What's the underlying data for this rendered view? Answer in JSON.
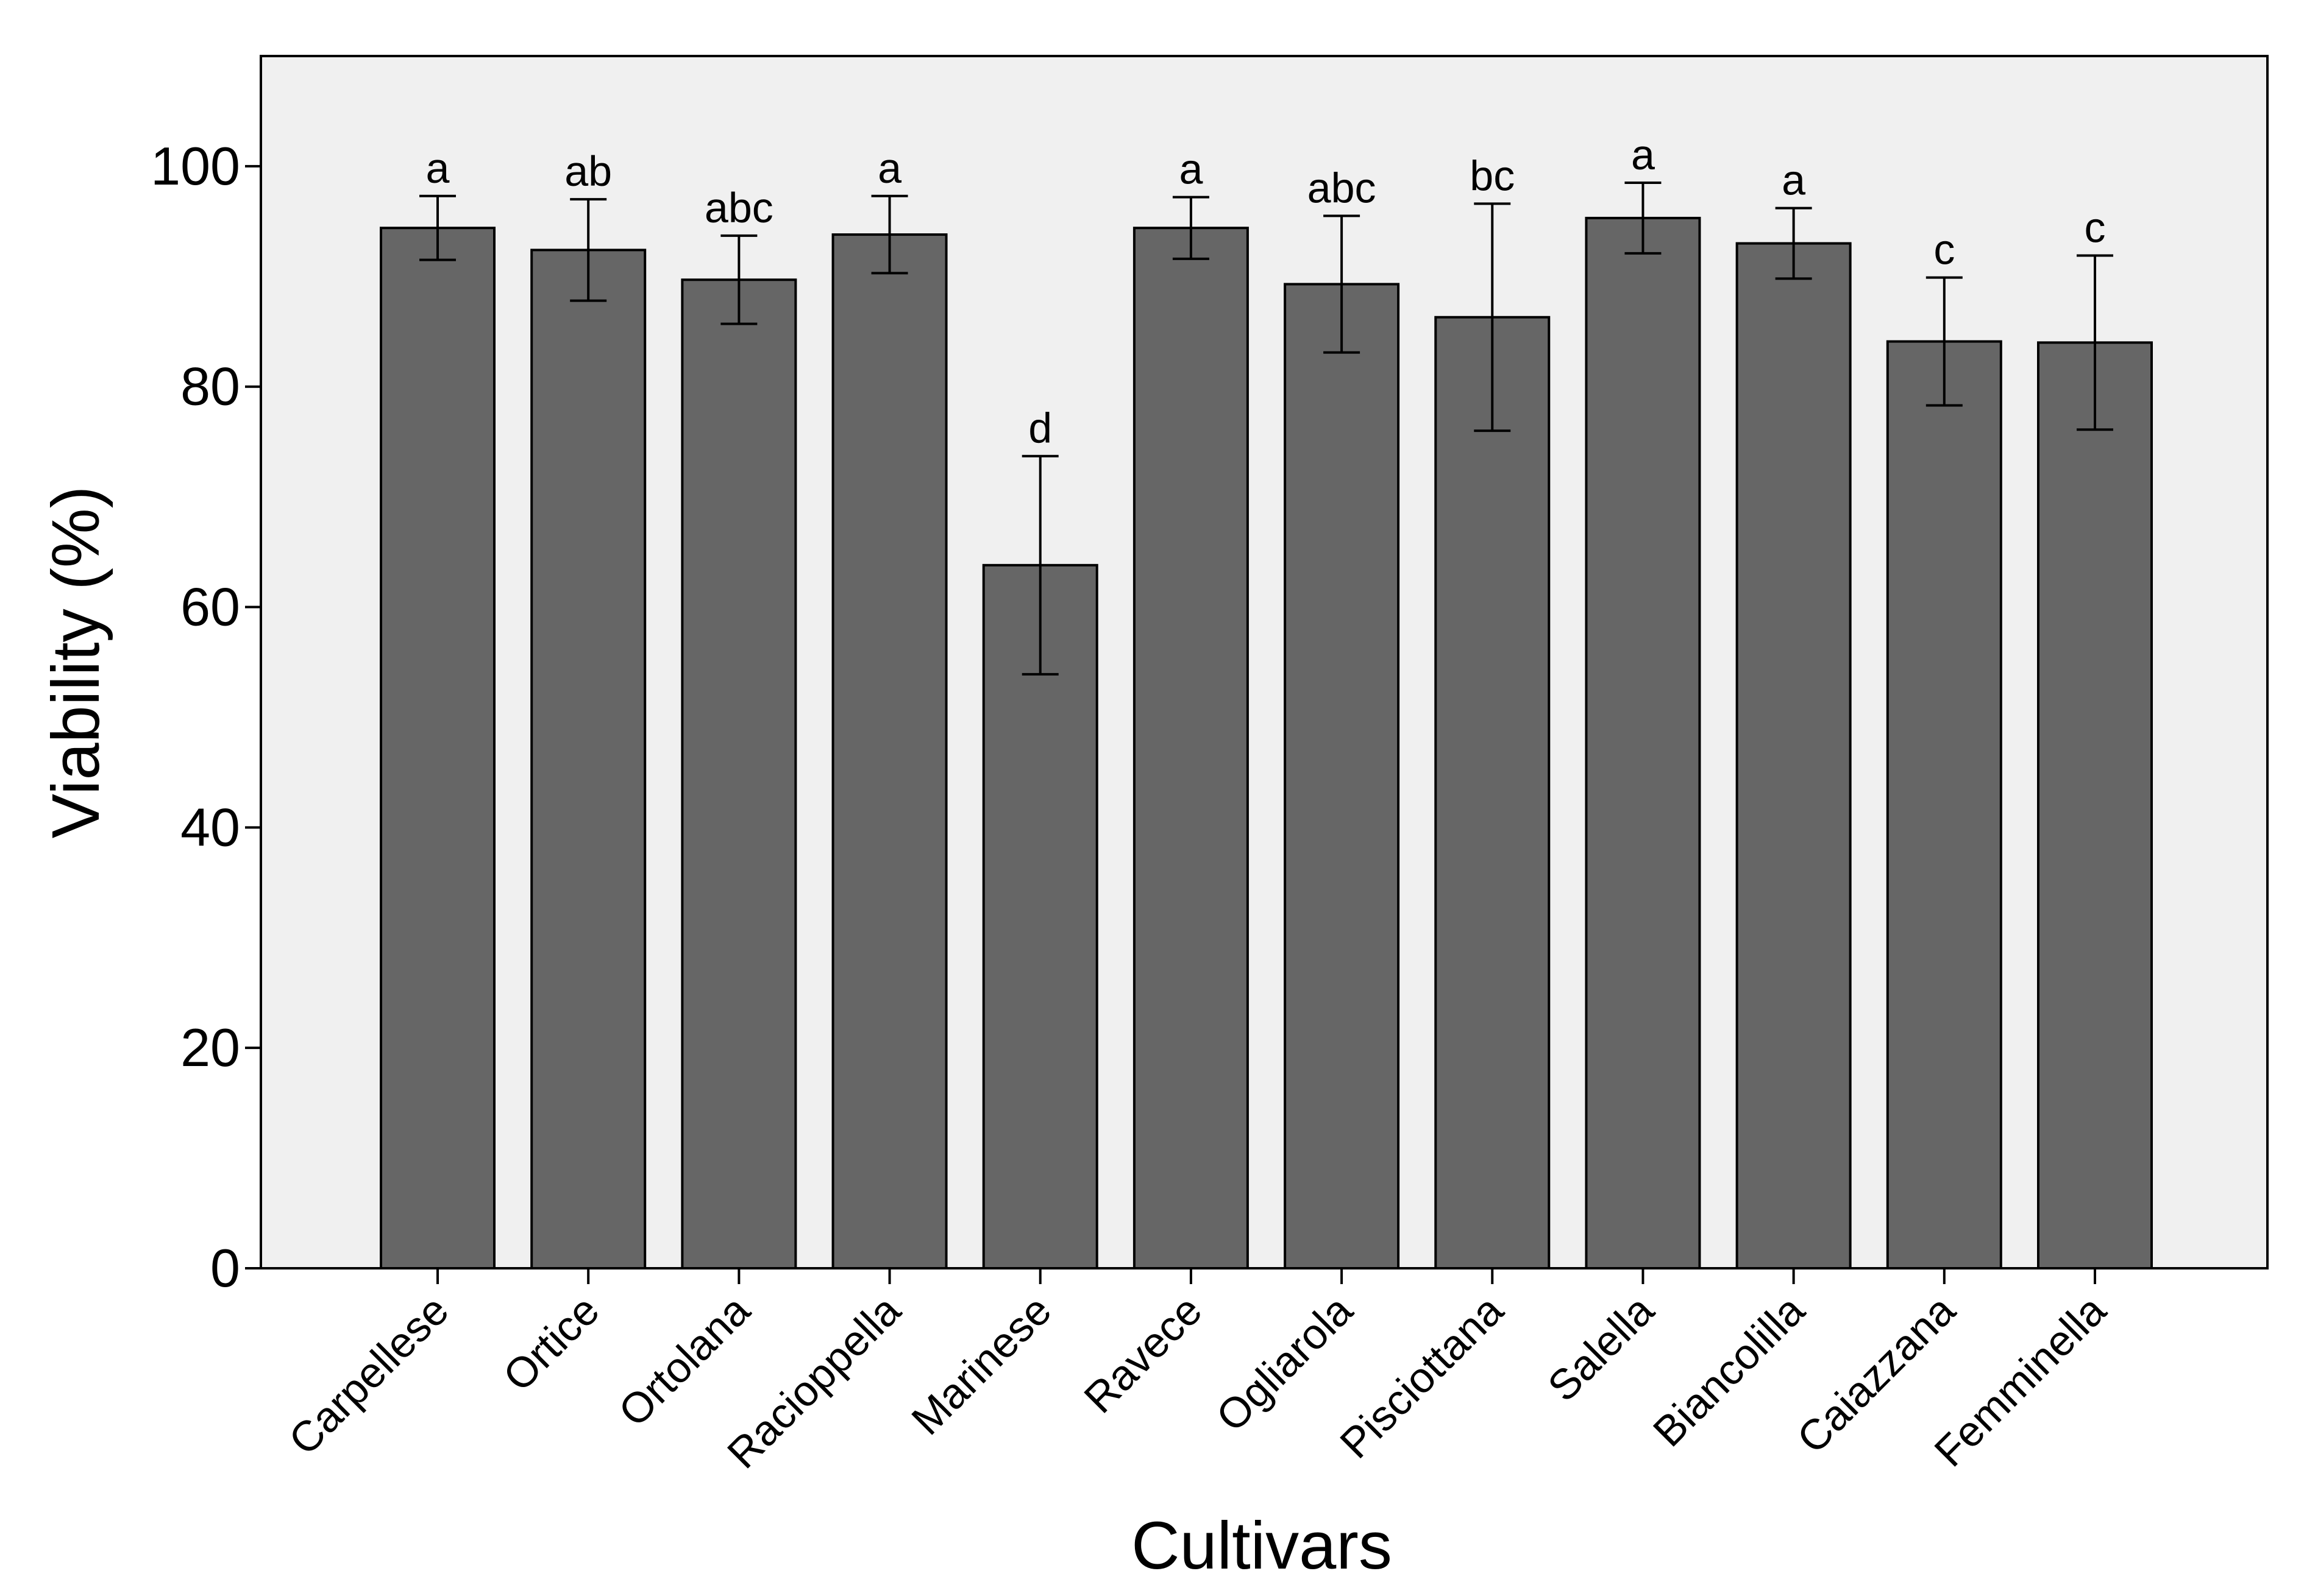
{
  "chart_data": {
    "type": "bar",
    "title": "",
    "xlabel": "Cultivars",
    "ylabel": "Viability (%)",
    "ylim": [
      0,
      110
    ],
    "yticks": [
      0,
      20,
      40,
      60,
      80,
      100
    ],
    "grid": false,
    "categories": [
      "Carpellese",
      "Ortice",
      "Ortolana",
      "Racioppella",
      "Marinese",
      "Ravece",
      "Ogliarola",
      "Pisciottana",
      "Salella",
      "Biancolilla",
      "Caiazzana",
      "Femminella"
    ],
    "series": [
      {
        "name": "Viability",
        "values": [
          94.4,
          92.4,
          89.7,
          93.8,
          63.8,
          94.4,
          89.3,
          86.3,
          95.3,
          93.0,
          84.1,
          84.0
        ],
        "error": [
          2.9,
          4.6,
          4.0,
          3.5,
          9.9,
          2.8,
          6.2,
          10.3,
          3.2,
          3.2,
          5.8,
          7.9
        ],
        "significance_letters": [
          "a",
          "ab",
          "abc",
          "a",
          "d",
          "a",
          "abc",
          "bc",
          "a",
          "a",
          "c",
          "c"
        ]
      }
    ],
    "colors": {
      "bar_fill": "#666666",
      "bar_stroke": "#000000",
      "plot_background": "#f0f0f0",
      "axis": "#000000",
      "text": "#000000"
    }
  }
}
